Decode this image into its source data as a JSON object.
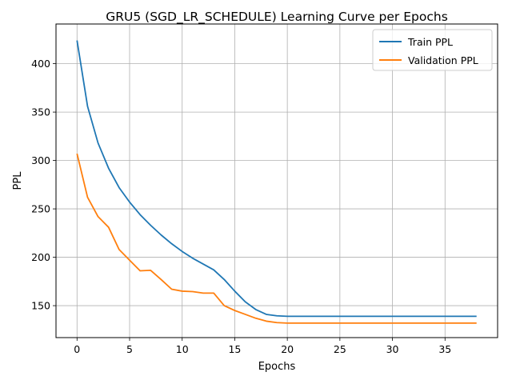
{
  "chart_data": {
    "type": "line",
    "title": "GRU5 (SGD_LR_SCHEDULE) Learning Curve per Epochs",
    "xlabel": "Epochs",
    "ylabel": "PPL",
    "xlim": [
      -2,
      40
    ],
    "ylim": [
      117,
      441
    ],
    "xticks": [
      0,
      5,
      10,
      15,
      20,
      25,
      30,
      35
    ],
    "yticks": [
      150,
      200,
      250,
      300,
      350,
      400
    ],
    "grid": true,
    "legend_position": "top-right",
    "x": [
      0,
      1,
      2,
      3,
      4,
      5,
      6,
      7,
      8,
      9,
      10,
      11,
      12,
      13,
      14,
      15,
      16,
      17,
      18,
      19,
      20,
      21,
      22,
      23,
      24,
      25,
      26,
      27,
      28,
      29,
      30,
      31,
      32,
      33,
      34,
      35,
      36,
      37,
      38
    ],
    "series": [
      {
        "name": "Train PPL",
        "color": "#1f77b4",
        "values": [
          424,
          356,
          318,
          292,
          272,
          257,
          244,
          233,
          223,
          214,
          206,
          199,
          193,
          187,
          177,
          165,
          154,
          146,
          141,
          139.5,
          139,
          139,
          139,
          139,
          139,
          139,
          139,
          139,
          139,
          139,
          139,
          139,
          139,
          139,
          139,
          139,
          139,
          139,
          139
        ]
      },
      {
        "name": "Validation PPL",
        "color": "#ff7f0e",
        "values": [
          307,
          262,
          242,
          231,
          208,
          197,
          186,
          186.5,
          177,
          167,
          165,
          164.5,
          163,
          163,
          150,
          145,
          141,
          137,
          134,
          132.5,
          132,
          132,
          132,
          132,
          132,
          132,
          132,
          132,
          132,
          132,
          132,
          132,
          132,
          132,
          132,
          132,
          132,
          132,
          132
        ]
      }
    ]
  }
}
